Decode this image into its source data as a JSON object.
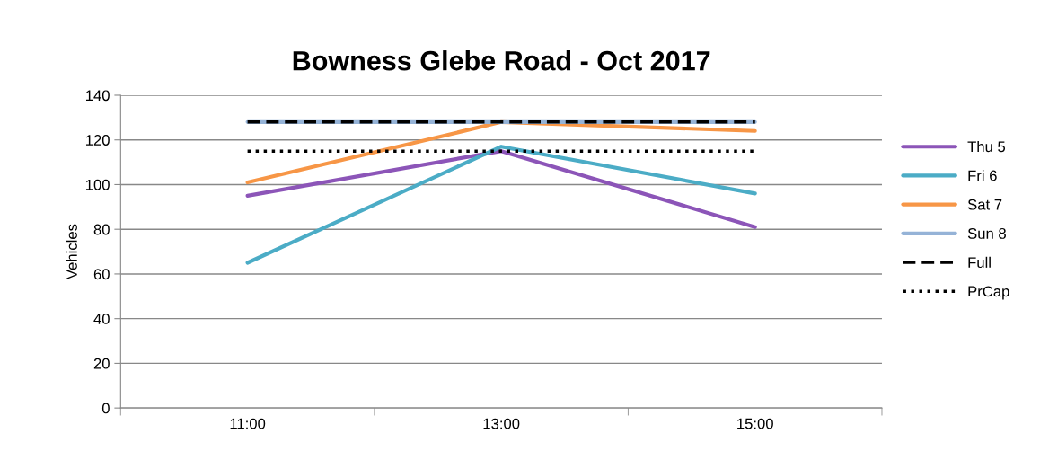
{
  "chart_data": {
    "type": "line",
    "title": "Bowness Glebe Road - Oct 2017",
    "ylabel": "Vehicles",
    "categories": [
      "11:00",
      "13:00",
      "15:00"
    ],
    "series": [
      {
        "name": "Thu 5",
        "color": "#8c55b8",
        "values": [
          95,
          115,
          81
        ]
      },
      {
        "name": "Fri 6",
        "color": "#4bacc6",
        "values": [
          65,
          117,
          96
        ]
      },
      {
        "name": "Sat 7",
        "color": "#f79646",
        "values": [
          101,
          128,
          124
        ]
      },
      {
        "name": "Sun 8",
        "color": "#95b3d7",
        "values": [
          128,
          128,
          128
        ]
      },
      {
        "name": "Full",
        "color": "#000000",
        "values": [
          128,
          128,
          128
        ],
        "line_style": "dashed"
      },
      {
        "name": "PrCap",
        "color": "#000000",
        "values": [
          115,
          115,
          115
        ],
        "line_style": "dotted"
      }
    ],
    "ylim": [
      0,
      140
    ],
    "yticks": [
      0,
      20,
      40,
      60,
      80,
      100,
      120,
      140
    ],
    "grid": "y",
    "legend": "right",
    "line_style": "solid",
    "marker": "none"
  }
}
